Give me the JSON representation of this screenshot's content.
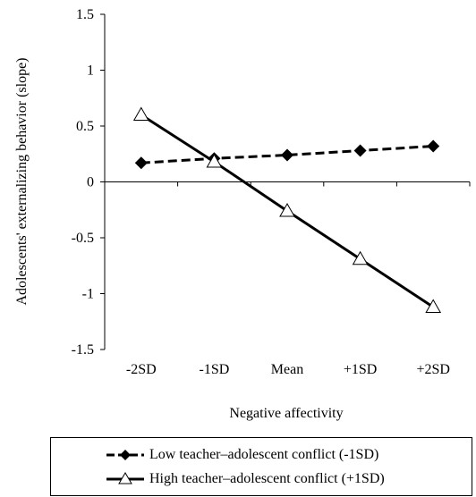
{
  "chart_data": {
    "type": "line",
    "categories": [
      "-2SD",
      "-1SD",
      "Mean",
      "+1SD",
      "+2SD"
    ],
    "ylabel": "Adolescents' externalizing behavior (slope)",
    "xlabel": "Negative affectivity",
    "ylim": [
      -1.5,
      1.5
    ],
    "yticks": [
      "1.5",
      "1",
      "0.5",
      "0",
      "-0.5",
      "-1",
      "-1.5"
    ],
    "ytick_values": [
      1.5,
      1,
      0.5,
      0,
      -0.5,
      -1,
      -1.5
    ],
    "grid": false,
    "legend_position": "bottom",
    "series": [
      {
        "name": "Low teacher–adolescent conflict (-1SD)",
        "marker": "diamond",
        "line": "dashed",
        "color": "#000000",
        "values": [
          0.17,
          0.21,
          0.24,
          0.28,
          0.32
        ]
      },
      {
        "name": "High teacher–adolescent conflict (+1SD)",
        "marker": "triangle-open",
        "line": "solid",
        "color": "#000000",
        "values": [
          0.6,
          0.18,
          -0.26,
          -0.69,
          -1.12
        ]
      }
    ]
  }
}
